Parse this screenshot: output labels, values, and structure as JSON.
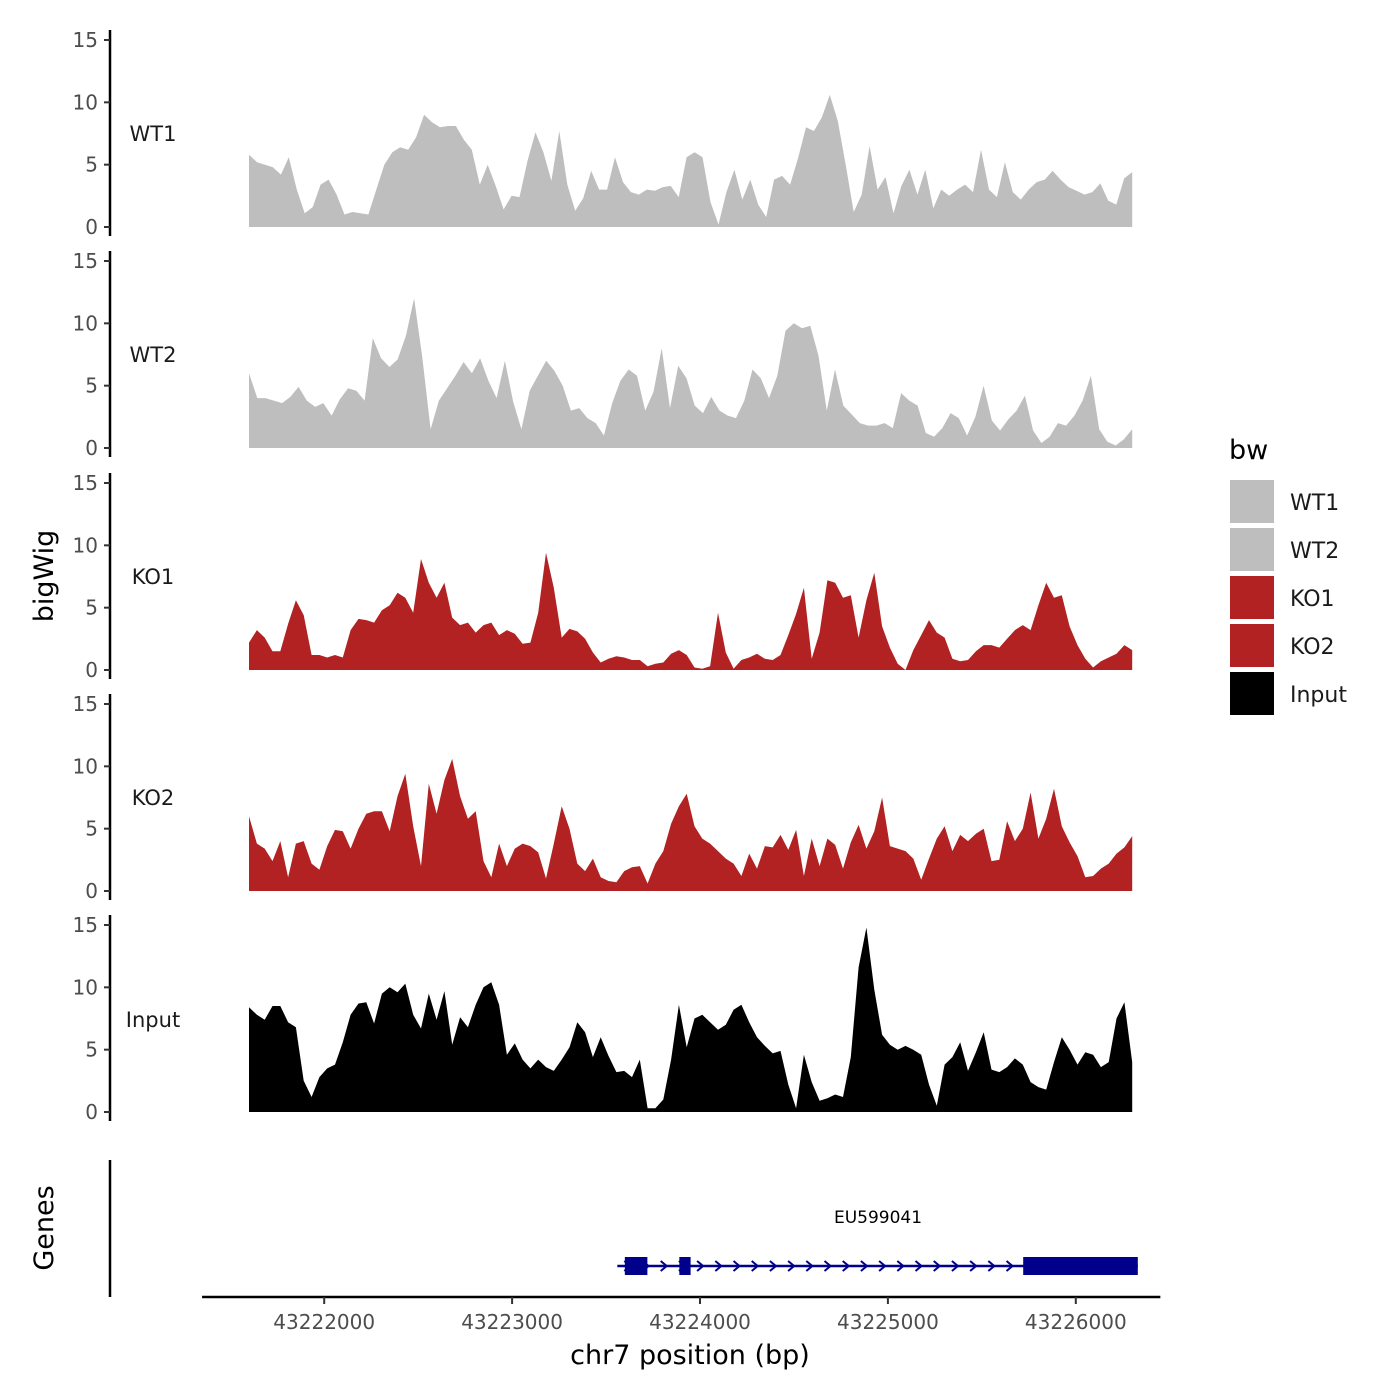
{
  "chart_data": {
    "type": "area",
    "title": "",
    "xlabel": "chr7 position (bp)",
    "ylabel": "bigWig",
    "genes_label": "Genes",
    "x_range": [
      43221600,
      43226300
    ],
    "xlim": [
      43221350,
      43226450
    ],
    "x_ticks": [
      43222000,
      43223000,
      43224000,
      43225000,
      43226000
    ],
    "x_tick_labels": [
      "43222000",
      "43223000",
      "43224000",
      "43225000",
      "43226000"
    ],
    "ylim": [
      0,
      15
    ],
    "y_ticks": [
      0,
      5,
      10,
      15
    ],
    "y_tick_labels": [
      "0",
      "5",
      "10",
      "15"
    ],
    "legend": {
      "title": "bw",
      "position": "right",
      "entries": [
        {
          "label": "WT1",
          "color": "#bebebe"
        },
        {
          "label": "WT2",
          "color": "#bebebe"
        },
        {
          "label": "KO1",
          "color": "#b22222"
        },
        {
          "label": "KO2",
          "color": "#b22222"
        },
        {
          "label": "Input",
          "color": "#000000"
        }
      ]
    },
    "series": [
      {
        "name": "WT1",
        "color": "#bebebe",
        "values": [
          5.8,
          5.2,
          5.0,
          4.8,
          4.2,
          5.6,
          3.0,
          1.1,
          1.6,
          3.4,
          3.8,
          2.6,
          1.0,
          1.2,
          1.1,
          1.0,
          3.0,
          5.0,
          6.0,
          6.4,
          6.2,
          7.2,
          9.0,
          8.4,
          8.0,
          8.1,
          8.1,
          7.0,
          6.2,
          3.4,
          5.0,
          3.3,
          1.4,
          2.5,
          2.4,
          5.3,
          7.6,
          6.0,
          3.7,
          7.7,
          3.4,
          1.3,
          2.3,
          4.5,
          3.0,
          3.0,
          5.6,
          3.6,
          2.8,
          2.6,
          3.0,
          2.9,
          3.2,
          3.3,
          2.4,
          5.6,
          6.0,
          5.6,
          2.0,
          0.2,
          2.8,
          4.6,
          2.2,
          3.8,
          1.8,
          0.8,
          3.8,
          4.1,
          3.4,
          5.5,
          8.0,
          7.7,
          8.8,
          10.6,
          8.5,
          5.0,
          1.2,
          2.6,
          6.5,
          3.0,
          4.0,
          1.1,
          3.3,
          4.6,
          2.6,
          4.6,
          1.5,
          3.0,
          2.5,
          3.0,
          3.4,
          2.8,
          6.2,
          3.0,
          2.4,
          5.2,
          2.8,
          2.2,
          3.0,
          3.6,
          3.8,
          4.5,
          3.8,
          3.2,
          2.9,
          2.6,
          2.8,
          3.5,
          2.1,
          1.8,
          3.9,
          4.4
        ]
      },
      {
        "name": "WT2",
        "color": "#bebebe",
        "values": [
          6.0,
          4.0,
          4.0,
          3.8,
          3.6,
          4.1,
          4.9,
          3.8,
          3.3,
          3.6,
          2.6,
          3.9,
          4.8,
          4.6,
          3.8,
          8.8,
          7.2,
          6.5,
          7.1,
          9.0,
          12.0,
          7.2,
          1.5,
          3.8,
          4.8,
          5.8,
          6.9,
          6.0,
          7.2,
          5.4,
          4.0,
          7.0,
          3.7,
          1.5,
          4.6,
          5.8,
          7.0,
          6.2,
          5.0,
          3.0,
          3.2,
          2.4,
          2.0,
          1.0,
          3.6,
          5.4,
          6.3,
          5.8,
          3.0,
          4.5,
          8.0,
          3.2,
          6.6,
          5.6,
          3.4,
          2.8,
          4.1,
          3.0,
          2.6,
          2.4,
          3.8,
          6.3,
          5.6,
          4.0,
          5.8,
          9.4,
          10.0,
          9.6,
          9.8,
          7.4,
          3.0,
          6.3,
          3.4,
          2.7,
          2.0,
          1.8,
          1.8,
          2.0,
          1.6,
          4.4,
          3.8,
          3.4,
          1.2,
          0.9,
          1.6,
          2.8,
          2.4,
          1.0,
          2.5,
          5.0,
          2.2,
          1.4,
          2.3,
          3.0,
          4.2,
          1.4,
          0.4,
          0.9,
          2.0,
          1.8,
          2.6,
          3.8,
          5.8,
          1.5,
          0.5,
          0.2,
          0.7,
          1.5
        ]
      },
      {
        "name": "KO1",
        "color": "#b22222",
        "values": [
          2.2,
          3.2,
          2.6,
          1.5,
          1.5,
          3.7,
          5.6,
          4.4,
          1.2,
          1.2,
          1.0,
          1.2,
          1.0,
          3.2,
          4.1,
          4.0,
          3.8,
          4.8,
          5.2,
          6.2,
          5.8,
          4.6,
          8.9,
          7.0,
          5.8,
          7.0,
          4.2,
          3.6,
          3.8,
          3.0,
          3.6,
          3.8,
          2.8,
          3.2,
          2.9,
          2.1,
          2.2,
          4.6,
          9.4,
          6.6,
          2.6,
          3.3,
          3.1,
          2.5,
          1.4,
          0.6,
          0.9,
          1.1,
          1.0,
          0.8,
          0.8,
          0.3,
          0.5,
          0.6,
          1.3,
          1.6,
          1.2,
          0.2,
          0.1,
          0.3,
          4.6,
          1.4,
          0.1,
          0.8,
          1.0,
          1.3,
          0.9,
          0.8,
          1.2,
          2.8,
          4.5,
          6.6,
          0.9,
          3.0,
          7.2,
          7.0,
          5.8,
          6.0,
          2.6,
          5.6,
          7.8,
          3.5,
          1.8,
          0.5,
          0.0,
          1.6,
          2.8,
          4.0,
          3.0,
          2.6,
          0.9,
          0.7,
          0.8,
          1.5,
          2.0,
          2.0,
          1.8,
          2.5,
          3.2,
          3.6,
          3.2,
          5.2,
          7.0,
          5.8,
          6.0,
          3.5,
          2.0,
          0.9,
          0.2,
          0.7,
          1.0,
          1.3,
          2.0,
          1.6
        ]
      },
      {
        "name": "KO2",
        "color": "#b22222",
        "values": [
          6.0,
          3.8,
          3.4,
          2.4,
          4.0,
          1.1,
          3.8,
          4.0,
          2.2,
          1.7,
          3.6,
          4.9,
          4.8,
          3.4,
          5.0,
          6.2,
          6.4,
          6.4,
          4.8,
          7.6,
          9.4,
          5.2,
          2.0,
          8.6,
          6.2,
          8.9,
          10.6,
          7.6,
          5.8,
          6.4,
          2.4,
          1.1,
          3.8,
          2.0,
          3.4,
          3.8,
          3.6,
          3.1,
          1.0,
          3.8,
          6.8,
          5.0,
          2.2,
          1.6,
          2.6,
          1.1,
          0.8,
          0.7,
          1.6,
          1.9,
          2.0,
          0.6,
          2.2,
          3.2,
          5.4,
          6.8,
          7.8,
          5.2,
          4.2,
          3.8,
          3.2,
          2.6,
          2.2,
          1.2,
          3.0,
          1.8,
          3.6,
          3.5,
          4.5,
          3.3,
          4.9,
          1.2,
          4.2,
          2.0,
          4.2,
          3.7,
          1.8,
          3.9,
          5.3,
          3.4,
          4.8,
          7.5,
          3.6,
          3.4,
          3.2,
          2.6,
          0.9,
          2.6,
          4.2,
          5.2,
          3.2,
          4.5,
          4.0,
          4.6,
          5.0,
          2.4,
          2.5,
          5.6,
          4.0,
          5.0,
          7.9,
          4.2,
          5.8,
          8.2,
          5.2,
          3.9,
          2.8,
          1.1,
          1.2,
          1.8,
          2.2,
          3.0,
          3.5,
          4.4
        ]
      },
      {
        "name": "Input",
        "color": "#000000",
        "values": [
          8.4,
          7.8,
          7.4,
          8.5,
          8.5,
          7.2,
          6.8,
          2.5,
          1.2,
          2.8,
          3.5,
          3.8,
          5.6,
          7.8,
          8.7,
          8.8,
          7.1,
          9.5,
          10.0,
          9.6,
          10.3,
          7.8,
          6.7,
          9.5,
          7.4,
          9.7,
          5.4,
          7.6,
          6.8,
          8.6,
          10.0,
          10.4,
          8.6,
          4.6,
          5.5,
          4.2,
          3.5,
          4.2,
          3.6,
          3.3,
          4.2,
          5.2,
          7.2,
          6.4,
          4.4,
          6.0,
          4.5,
          3.2,
          3.3,
          2.8,
          4.2,
          0.3,
          0.3,
          1.0,
          4.2,
          8.6,
          5.2,
          7.5,
          7.8,
          7.2,
          6.6,
          7.0,
          8.2,
          8.6,
          7.2,
          6.0,
          5.3,
          4.7,
          4.9,
          2.2,
          0.3,
          4.6,
          2.4,
          0.9,
          1.1,
          1.4,
          1.2,
          4.4,
          11.6,
          14.8,
          9.8,
          6.2,
          5.4,
          5.0,
          5.3,
          5.0,
          4.6,
          2.2,
          0.5,
          3.8,
          4.4,
          5.6,
          3.3,
          4.8,
          6.4,
          3.4,
          3.2,
          3.6,
          4.3,
          3.8,
          2.4,
          2.0,
          1.8,
          4.0,
          6.0,
          5.0,
          3.8,
          4.8,
          4.6,
          3.6,
          4.0,
          7.5,
          8.8,
          4.0
        ]
      }
    ],
    "gene": {
      "name": "EU599041",
      "start": 43223560,
      "end": 43226330,
      "strand": "+",
      "exons": [
        [
          43223600,
          43223720
        ],
        [
          43223890,
          43223950
        ],
        [
          43225720,
          43226330
        ]
      ],
      "color": "#00008b"
    }
  }
}
